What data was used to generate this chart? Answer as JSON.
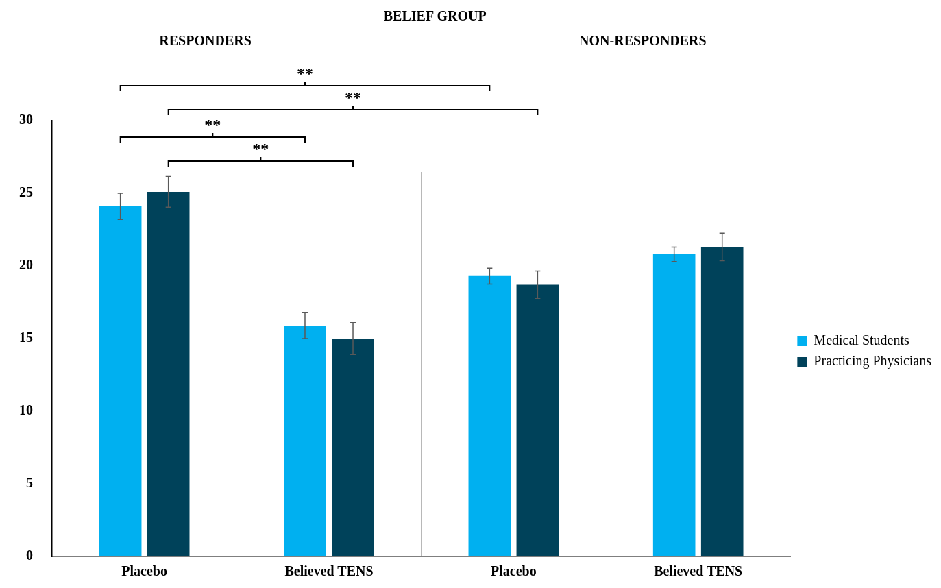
{
  "chart_data": {
    "type": "bar",
    "title": "BELIEF GROUP",
    "categories": [
      "Placebo",
      "Believed TENS",
      "Placebo",
      "Believed TENS"
    ],
    "series": [
      {
        "name": "Medical Students",
        "color": "#00b0f0",
        "values": [
          24.1,
          15.9,
          19.3,
          20.8
        ],
        "errors": [
          0.9,
          0.9,
          0.55,
          0.5
        ]
      },
      {
        "name": "Practicing Physicians",
        "color": "#00425a",
        "values": [
          25.1,
          15.0,
          18.7,
          21.3
        ],
        "errors": [
          1.05,
          1.1,
          0.95,
          0.95
        ]
      }
    ],
    "ylim": [
      0,
      30
    ],
    "yticks": [
      0,
      5,
      10,
      15,
      20,
      25,
      30
    ],
    "legend": "right",
    "annotations": [
      "RESPONDERS",
      "NON-RESPONDERS",
      "**",
      "**",
      "**",
      "**"
    ]
  }
}
